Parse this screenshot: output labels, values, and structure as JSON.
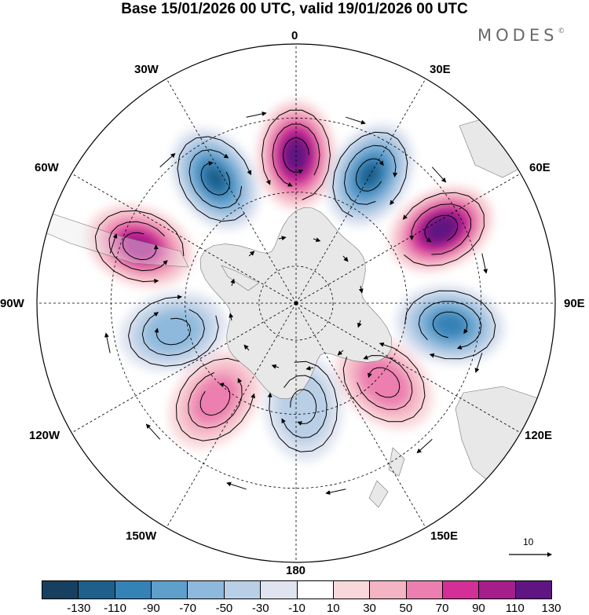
{
  "title": "Base 15/01/2026 00 UTC, valid 19/01/2026 00 UTC",
  "brand": {
    "name": "MODES",
    "mark": "©"
  },
  "longitude_labels": {
    "lon_0": "0",
    "lon_30e": "30E",
    "lon_60e": "60E",
    "lon_90e": "90E",
    "lon_120e": "120E",
    "lon_150e": "150E",
    "lon_180": "180",
    "lon_150w": "150W",
    "lon_120w": "120W",
    "lon_90w": "90W",
    "lon_60w": "60W",
    "lon_30w": "30W"
  },
  "vector_scale": {
    "label": "10"
  },
  "colors": {
    "land": "#e8e8e8",
    "background": "#ffffff",
    "colorbar": [
      "#173f5f",
      "#1f5f8b",
      "#3482b6",
      "#5f9fcc",
      "#8eb9dc",
      "#b9cfe6",
      "#dfe4f0",
      "#ffffff",
      "#f9d8dc",
      "#f4b4c4",
      "#ec7fb0",
      "#d42f96",
      "#a61d8c",
      "#5f1682"
    ]
  },
  "colorbar_ticks": [
    "-130",
    "-110",
    "-90",
    "-70",
    "-50",
    "-30",
    "-10",
    "10",
    "30",
    "50",
    "70",
    "90",
    "110",
    "130"
  ],
  "anomaly_centers": [
    {
      "lon": 0,
      "lat": -50,
      "value": 125
    },
    {
      "lon": 30,
      "lat": -50,
      "value": -110
    },
    {
      "lon": 63,
      "lat": -46,
      "value": 130
    },
    {
      "lon": 98,
      "lat": -48,
      "value": -95
    },
    {
      "lon": 132,
      "lat": -58,
      "value": 65
    },
    {
      "lon": 176,
      "lat": -62,
      "value": -45
    },
    {
      "lon": -140,
      "lat": -56,
      "value": 60
    },
    {
      "lon": -103,
      "lat": -56,
      "value": -65
    },
    {
      "lon": -70,
      "lat": -45,
      "value": 100
    },
    {
      "lon": -33,
      "lat": -50,
      "value": -110
    }
  ]
}
